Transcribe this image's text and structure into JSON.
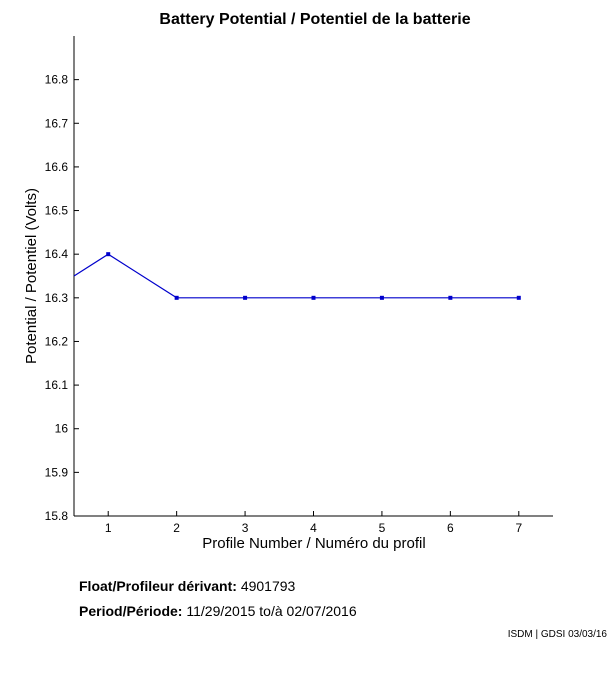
{
  "chart_data": {
    "type": "line",
    "title": "Battery Potential / Potentiel de la batterie",
    "xlabel": "Profile Number / Numéro du profil",
    "ylabel": "Potential / Potentiel (Volts)",
    "xlim": [
      0.5,
      7.5
    ],
    "ylim": [
      15.8,
      16.9
    ],
    "x_ticks": [
      1,
      2,
      3,
      4,
      5,
      6,
      7
    ],
    "y_ticks": [
      15.8,
      15.9,
      16,
      16.1,
      16.2,
      16.3,
      16.4,
      16.5,
      16.6,
      16.7,
      16.8
    ],
    "y_tick_labels": [
      "15.8",
      "15.9",
      "16",
      "16.1",
      "16.2",
      "16.3",
      "16.4",
      "16.5",
      "16.6",
      "16.7",
      "16.8"
    ],
    "grid": false,
    "line_color": "#0000cc",
    "series": [
      {
        "x": [
          0.5,
          1,
          2,
          3,
          4,
          5,
          6,
          7
        ],
        "y": [
          16.35,
          16.4,
          16.3,
          16.3,
          16.3,
          16.3,
          16.3,
          16.3
        ]
      }
    ]
  },
  "float_info": {
    "float_label": "Float/Profileur dérivant:",
    "float_value": "4901793",
    "period_label": "Period/Période:",
    "period_start": "11/29/2015",
    "period_sep": "to/à",
    "period_end": "02/07/2016"
  },
  "credit": "ISDM | GDSI 03/03/16"
}
